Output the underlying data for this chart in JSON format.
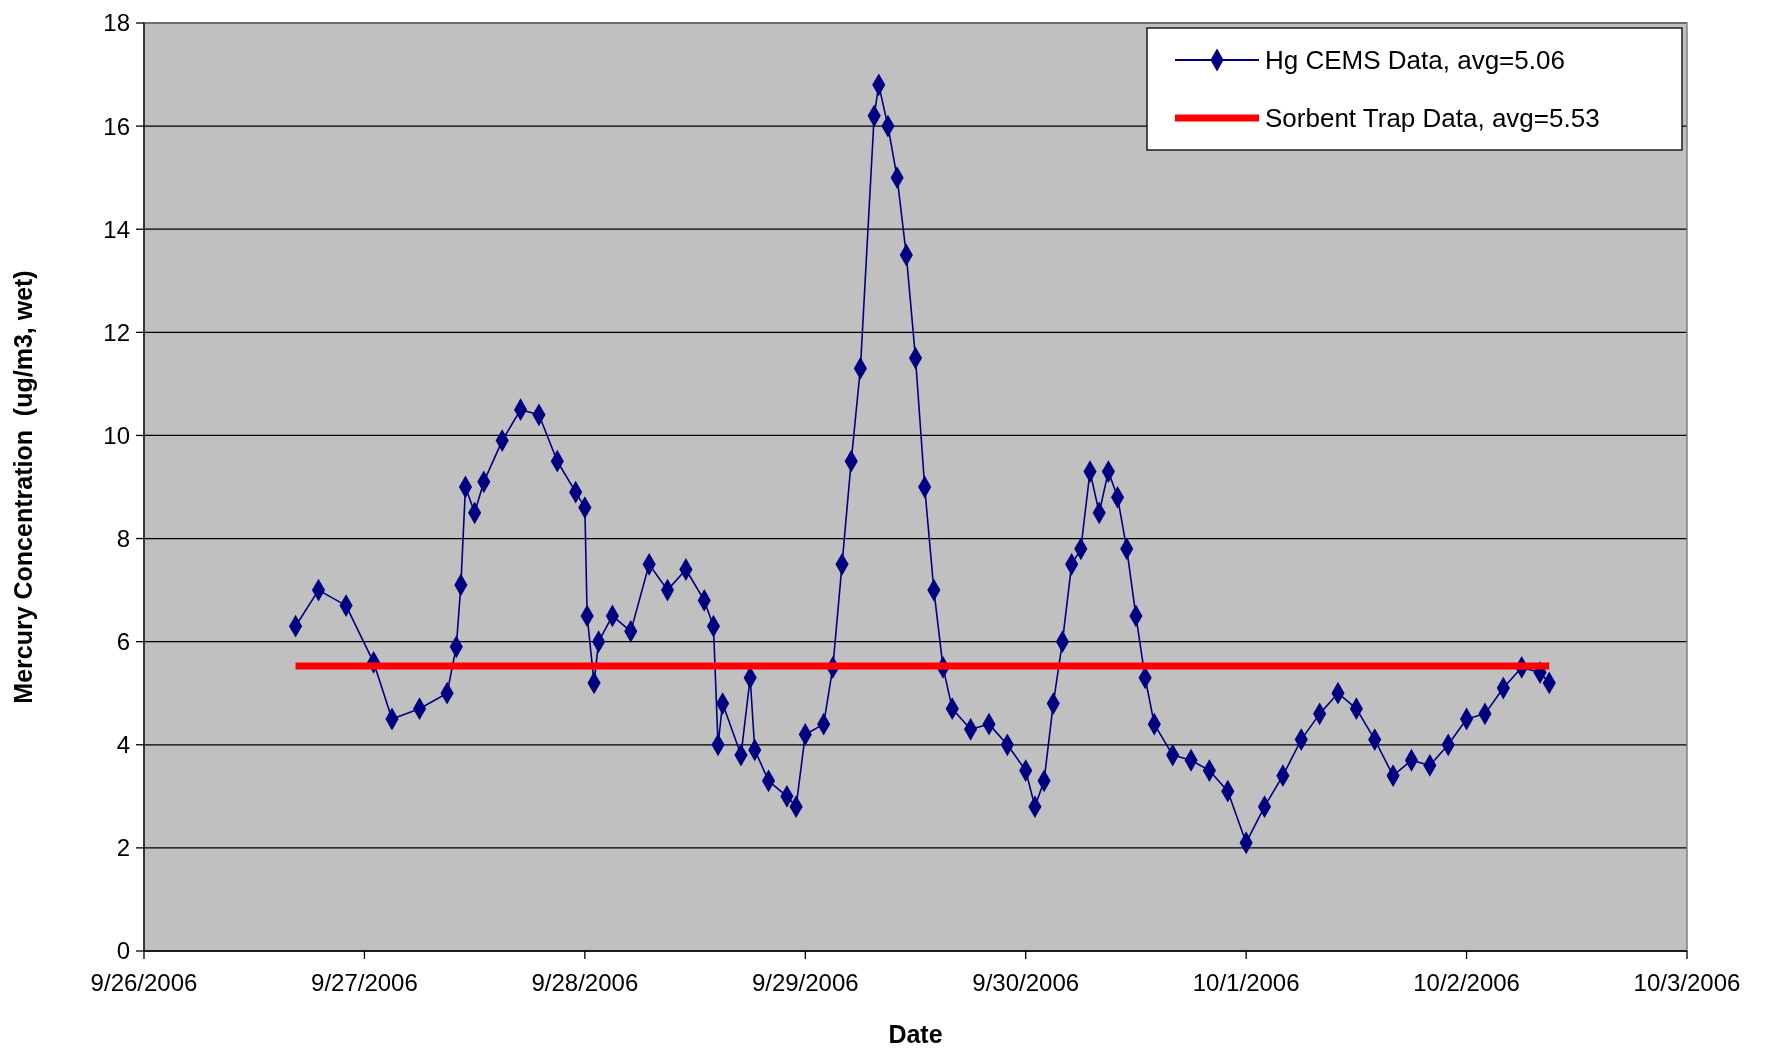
{
  "chart_data": {
    "type": "line",
    "xlabel": "Date",
    "ylabel": "Mercury Concentration  (ug/m3, wet)",
    "xlim": [
      "2006-09-26",
      "2006-10-03"
    ],
    "xticks": [
      {
        "value": "2006-09-26",
        "label": "9/26/2006"
      },
      {
        "value": "2006-09-27",
        "label": "9/27/2006"
      },
      {
        "value": "2006-09-28",
        "label": "9/28/2006"
      },
      {
        "value": "2006-09-29",
        "label": "9/29/2006"
      },
      {
        "value": "2006-09-30",
        "label": "9/30/2006"
      },
      {
        "value": "2006-10-01",
        "label": "10/1/2006"
      },
      {
        "value": "2006-10-02",
        "label": "10/2/2006"
      },
      {
        "value": "2006-10-03",
        "label": "10/3/2006"
      }
    ],
    "ylim": [
      0,
      18
    ],
    "yticks": [
      0,
      2,
      4,
      6,
      8,
      10,
      12,
      14,
      16,
      18
    ],
    "grid": "y",
    "legend": "top right",
    "series": [
      {
        "name": "Hg CEMS Data, avg=5.06",
        "color": "#000080",
        "marker": "diamond",
        "x": [
          "2006-09-26T16:30",
          "2006-09-26T19:00",
          "2006-09-26T22:00",
          "2006-09-27T01:00",
          "2006-09-27T03:00",
          "2006-09-27T06:00",
          "2006-09-27T09:00",
          "2006-09-27T10:00",
          "2006-09-27T10:30",
          "2006-09-27T11:00",
          "2006-09-27T12:00",
          "2006-09-27T13:00",
          "2006-09-27T15:00",
          "2006-09-27T17:00",
          "2006-09-27T19:00",
          "2006-09-27T21:00",
          "2006-09-27T23:00",
          "2006-09-28T00:00",
          "2006-09-28T00:15",
          "2006-09-28T01:00",
          "2006-09-28T01:30",
          "2006-09-28T03:00",
          "2006-09-28T05:00",
          "2006-09-28T07:00",
          "2006-09-28T09:00",
          "2006-09-28T11:00",
          "2006-09-28T13:00",
          "2006-09-28T14:00",
          "2006-09-28T14:30",
          "2006-09-28T15:00",
          "2006-09-28T17:00",
          "2006-09-28T18:00",
          "2006-09-28T18:30",
          "2006-09-28T20:00",
          "2006-09-28T22:00",
          "2006-09-28T23:00",
          "2006-09-29T00:00",
          "2006-09-29T02:00",
          "2006-09-29T03:00",
          "2006-09-29T04:00",
          "2006-09-29T05:00",
          "2006-09-29T06:00",
          "2006-09-29T07:30",
          "2006-09-29T08:00",
          "2006-09-29T09:00",
          "2006-09-29T10:00",
          "2006-09-29T11:00",
          "2006-09-29T12:00",
          "2006-09-29T13:00",
          "2006-09-29T14:00",
          "2006-09-29T15:00",
          "2006-09-29T16:00",
          "2006-09-29T18:00",
          "2006-09-29T20:00",
          "2006-09-29T22:00",
          "2006-09-30T00:00",
          "2006-09-30T01:00",
          "2006-09-30T02:00",
          "2006-09-30T03:00",
          "2006-09-30T04:00",
          "2006-09-30T05:00",
          "2006-09-30T06:00",
          "2006-09-30T07:00",
          "2006-09-30T08:00",
          "2006-09-30T09:00",
          "2006-09-30T10:00",
          "2006-09-30T11:00",
          "2006-09-30T12:00",
          "2006-09-30T13:00",
          "2006-09-30T14:00",
          "2006-09-30T16:00",
          "2006-09-30T18:00",
          "2006-09-30T20:00",
          "2006-09-30T22:00",
          "2006-10-01T00:00",
          "2006-10-01T02:00",
          "2006-10-01T04:00",
          "2006-10-01T06:00",
          "2006-10-01T08:00",
          "2006-10-01T10:00",
          "2006-10-01T12:00",
          "2006-10-01T14:00",
          "2006-10-01T16:00",
          "2006-10-01T18:00",
          "2006-10-01T20:00",
          "2006-10-01T22:00",
          "2006-10-02T00:00",
          "2006-10-02T02:00",
          "2006-10-02T04:00",
          "2006-10-02T06:00",
          "2006-10-02T08:00",
          "2006-10-02T09:00"
        ],
        "values": [
          6.3,
          7.0,
          6.7,
          5.6,
          4.5,
          4.7,
          5.0,
          5.9,
          7.1,
          9.0,
          8.5,
          9.1,
          9.9,
          10.5,
          10.4,
          9.5,
          8.9,
          8.6,
          6.5,
          5.2,
          6.0,
          6.5,
          6.2,
          7.5,
          7.0,
          7.4,
          6.8,
          6.3,
          4.0,
          4.8,
          3.8,
          5.3,
          3.9,
          3.3,
          3.0,
          2.8,
          4.2,
          4.4,
          5.5,
          7.5,
          9.5,
          11.3,
          16.2,
          16.8,
          16.0,
          15.0,
          13.5,
          11.5,
          9.0,
          7.0,
          5.5,
          4.7,
          4.3,
          4.4,
          4.0,
          3.5,
          2.8,
          3.3,
          4.8,
          6.0,
          7.5,
          7.8,
          9.3,
          8.5,
          9.3,
          8.8,
          7.8,
          6.5,
          5.3,
          4.4,
          3.8,
          3.7,
          3.5,
          3.1,
          2.1,
          2.8,
          3.4,
          4.1,
          4.6,
          5.0,
          4.7,
          4.1,
          3.4,
          3.7,
          3.6,
          4.0,
          4.5,
          4.6,
          5.1,
          5.5,
          5.4,
          5.2
        ]
      },
      {
        "name": "Sorbent Trap Data, avg=5.53",
        "color": "#ff0000",
        "marker": "none",
        "x": [
          "2006-09-26T16:30",
          "2006-10-02T09:00"
        ],
        "values": [
          5.53,
          5.53
        ]
      }
    ]
  }
}
